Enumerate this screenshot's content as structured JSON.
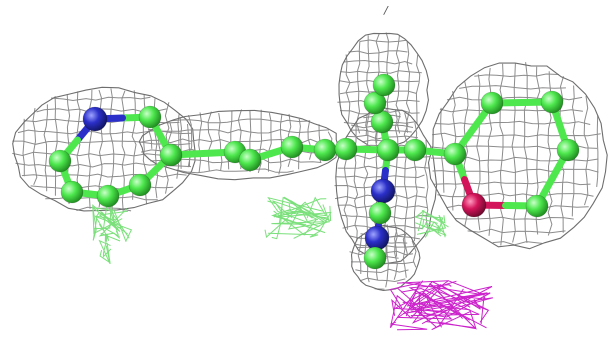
{
  "scene": {
    "kind": "molecular-structure-render",
    "stray_mark": "/",
    "colors": {
      "background": "#ffffff",
      "density_mesh": "#8c8c8c",
      "positive_difference_mesh": "#7be07b",
      "negative_difference_mesh": "#cc22cc",
      "carbon": "#4ee84e",
      "nitrogen": "#2b2fc9",
      "oxygen": "#d4145a"
    },
    "atom_elements": [
      "N",
      "C",
      "C",
      "C",
      "C",
      "C",
      "C",
      "C",
      "C",
      "C",
      "C",
      "C",
      "C",
      "C",
      "C",
      "N",
      "C",
      "N",
      "C",
      "O",
      "C",
      "C",
      "C",
      "C",
      "C",
      "C",
      "C"
    ]
  }
}
